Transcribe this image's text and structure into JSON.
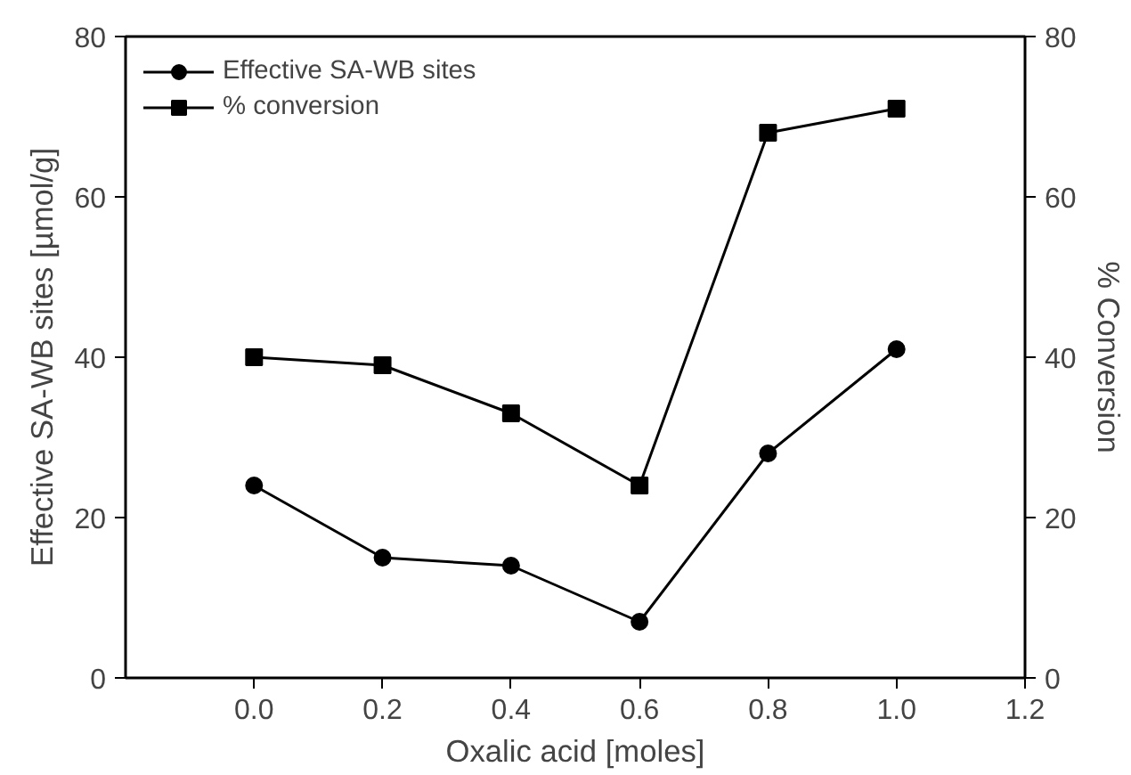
{
  "chart_data": {
    "type": "line",
    "xlabel": "Oxalic acid [moles]",
    "ylabel": "Effective SA-WB sites [µmol/g]",
    "y2label": "% Conversion",
    "x": [
      0.0,
      0.2,
      0.4,
      0.6,
      0.8,
      1.0
    ],
    "series": [
      {
        "name": "Effective SA-WB sites",
        "color": "#000000",
        "marker": "circle",
        "values": [
          24,
          15,
          14,
          7,
          28,
          41
        ]
      },
      {
        "name": "% conversion",
        "color": "#000000",
        "marker": "square",
        "values": [
          40,
          39,
          33,
          24,
          68,
          71
        ]
      }
    ],
    "xlim": [
      -0.2,
      1.2
    ],
    "xticks": [
      {
        "value": 0,
        "label": "0.0"
      },
      0.2,
      0.4,
      0.6,
      0.8,
      {
        "value": 1,
        "label": "1.0"
      },
      1.2
    ],
    "ylim": [
      0,
      80
    ],
    "yticks": [
      0,
      20,
      40,
      60,
      80
    ],
    "y2lim": [
      0,
      80
    ],
    "y2ticks": [
      0,
      20,
      40,
      60,
      80
    ],
    "grid": false,
    "legend": "top left",
    "line_style": "solid"
  }
}
